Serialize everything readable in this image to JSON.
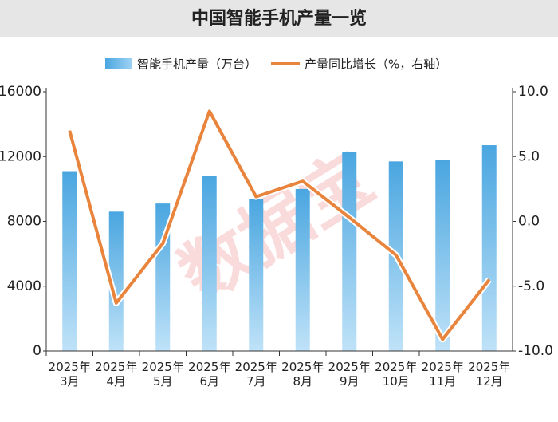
{
  "chart_data": {
    "type": "bar-line",
    "title": "中国智能手机产量一览",
    "watermark": "数据宝",
    "categories": [
      [
        "2025年",
        "3月"
      ],
      [
        "2025年",
        "4月"
      ],
      [
        "2025年",
        "5月"
      ],
      [
        "2025年",
        "6月"
      ],
      [
        "2025年",
        "7月"
      ],
      [
        "2025年",
        "8月"
      ],
      [
        "2025年",
        "9月"
      ],
      [
        "2025年",
        "10月"
      ],
      [
        "2025年",
        "11月"
      ],
      [
        "2025年",
        "12月"
      ]
    ],
    "series": [
      {
        "name": "智能手机产量（万台）",
        "color": "#4aa6e0",
        "type": "bar",
        "values": [
          11100,
          8600,
          9100,
          10800,
          9400,
          10000,
          12300,
          11700,
          11800,
          12700
        ]
      },
      {
        "name": "产量同比增长（%，右轴）",
        "color": "#e8843c",
        "type": "line",
        "axis": "y2",
        "values": [
          7.0,
          -6.3,
          -1.7,
          8.5,
          1.9,
          3.1,
          0.3,
          -2.6,
          -9.1,
          -4.5
        ]
      }
    ],
    "ylim": [
      0,
      16000
    ],
    "yticks": [
      0,
      4000,
      8000,
      12000,
      16000
    ],
    "y2lim": [
      -10,
      10
    ],
    "y2ticks": [
      {
        "value": -10,
        "label": "-10.0"
      },
      {
        "value": -5,
        "label": "-5.0"
      },
      {
        "value": 0,
        "label": "0.0"
      },
      {
        "value": 5,
        "label": "5.0"
      },
      {
        "value": 10,
        "label": "10.0"
      }
    ]
  }
}
